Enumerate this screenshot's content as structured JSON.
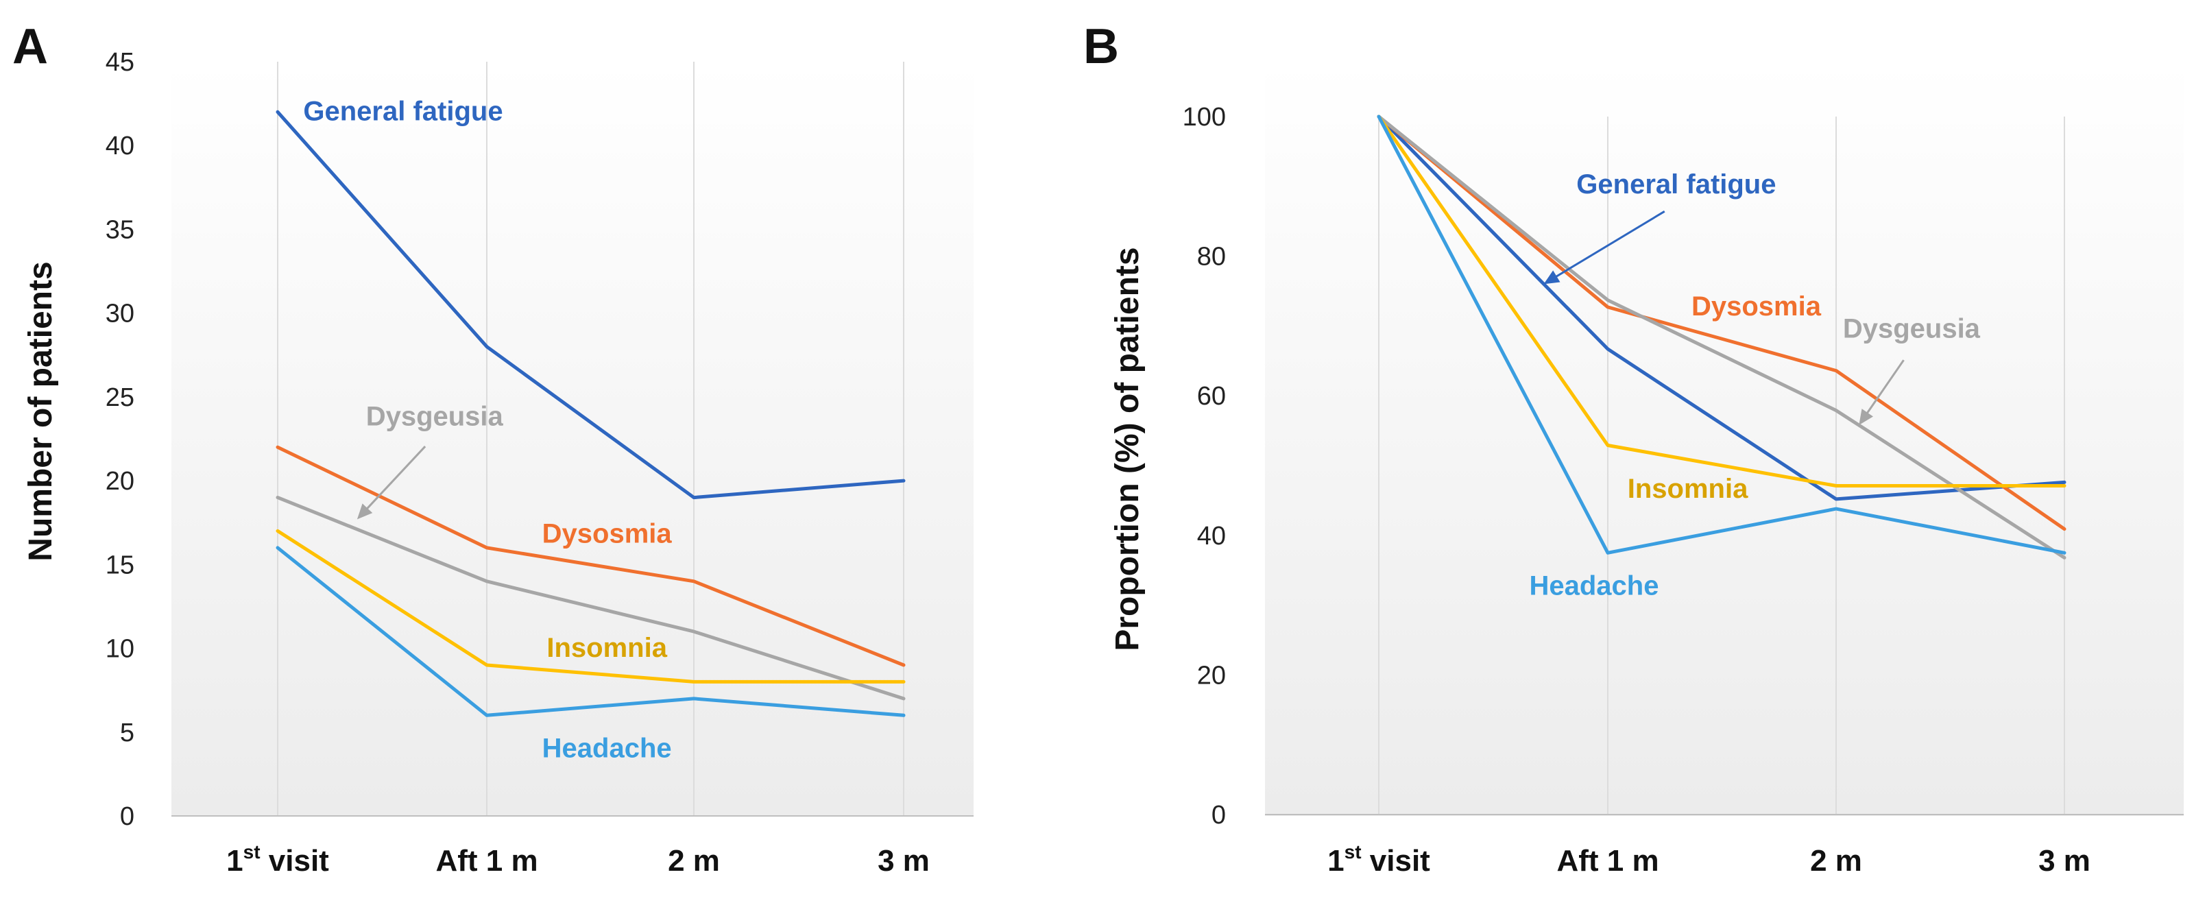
{
  "chart_data": [
    {
      "panel": "A",
      "type": "line",
      "categories": [
        {
          "main": "1",
          "sup": "st",
          "rest": " visit"
        },
        {
          "main": "Aft 1 m",
          "sup": "",
          "rest": ""
        },
        {
          "main": "2 m",
          "sup": "",
          "rest": ""
        },
        {
          "main": "3 m",
          "sup": "",
          "rest": ""
        }
      ],
      "ylabel": "Number of patients",
      "ylim": [
        0,
        45
      ],
      "yticks": [
        0,
        5,
        10,
        15,
        20,
        25,
        30,
        35,
        40,
        45
      ],
      "series": [
        {
          "name": "General fatigue",
          "color": "#2e66c0",
          "values": [
            42,
            28,
            19,
            20
          ]
        },
        {
          "name": "Dysosmia",
          "color": "#f0702e",
          "values": [
            22,
            16,
            14,
            9
          ]
        },
        {
          "name": "Dysgeusia",
          "color": "#a6a6a6",
          "values": [
            19,
            14,
            11,
            7
          ]
        },
        {
          "name": "Insomnia",
          "color": "#ffc000",
          "values": [
            17,
            9,
            8,
            8
          ]
        },
        {
          "name": "Headache",
          "color": "#3a9ee0",
          "values": [
            16,
            6,
            7,
            6
          ]
        }
      ],
      "labels": [
        {
          "series": "General fatigue",
          "text": "General fatigue",
          "color": "#2e66c0",
          "x": 0.6,
          "y": 41.5
        },
        {
          "series": "Dysgeusia",
          "text": "Dysgeusia",
          "color": "#a6a6a6",
          "x": 0.75,
          "y": 23.3,
          "arrow_to": {
            "x": 0.38,
            "y": 17.7
          }
        },
        {
          "series": "Dysosmia",
          "text": "Dysosmia",
          "color": "#f0702e",
          "x": 1.58,
          "y": 16.3
        },
        {
          "series": "Insomnia",
          "text": "Insomnia",
          "color": "#d8a200",
          "x": 1.58,
          "y": 9.5
        },
        {
          "series": "Headache",
          "text": "Headache",
          "color": "#3a9ee0",
          "x": 1.58,
          "y": 3.5
        }
      ]
    },
    {
      "panel": "B",
      "type": "line",
      "categories": [
        {
          "main": "1",
          "sup": "st",
          "rest": " visit"
        },
        {
          "main": "Aft 1 m",
          "sup": "",
          "rest": ""
        },
        {
          "main": "2 m",
          "sup": "",
          "rest": ""
        },
        {
          "main": "3 m",
          "sup": "",
          "rest": ""
        }
      ],
      "ylabel": "Proportion (%) of patients",
      "ylim": [
        0,
        100
      ],
      "yticks": [
        0,
        20,
        40,
        60,
        80,
        100
      ],
      "series": [
        {
          "name": "General fatigue",
          "color": "#2e66c0",
          "values": [
            100,
            66.7,
            45.2,
            47.6
          ]
        },
        {
          "name": "Dysosmia",
          "color": "#f0702e",
          "values": [
            100,
            72.7,
            63.6,
            40.9
          ]
        },
        {
          "name": "Dysgeusia",
          "color": "#a6a6a6",
          "values": [
            100,
            73.7,
            57.9,
            36.8
          ]
        },
        {
          "name": "Insomnia",
          "color": "#ffc000",
          "values": [
            100,
            52.9,
            47.1,
            47.1
          ]
        },
        {
          "name": "Headache",
          "color": "#3a9ee0",
          "values": [
            100,
            37.5,
            43.8,
            37.5
          ]
        }
      ],
      "labels": [
        {
          "series": "General fatigue",
          "text": "General fatigue",
          "color": "#2e66c0",
          "x": 1.3,
          "y": 89,
          "arrow_to": {
            "x": 0.72,
            "y": 76
          }
        },
        {
          "series": "Dysosmia",
          "text": "Dysosmia",
          "color": "#f0702e",
          "x": 1.65,
          "y": 71.5
        },
        {
          "series": "Dysgeusia",
          "text": "Dysgeusia",
          "color": "#a6a6a6",
          "x": 2.33,
          "y": 68.3,
          "arrow_to": {
            "x": 2.1,
            "y": 55.8
          }
        },
        {
          "series": "Insomnia",
          "text": "Insomnia",
          "color": "#d8a200",
          "x": 1.35,
          "y": 45.4
        },
        {
          "series": "Headache",
          "text": "Headache",
          "color": "#3a9ee0",
          "x": 0.94,
          "y": 31.5
        }
      ]
    }
  ]
}
